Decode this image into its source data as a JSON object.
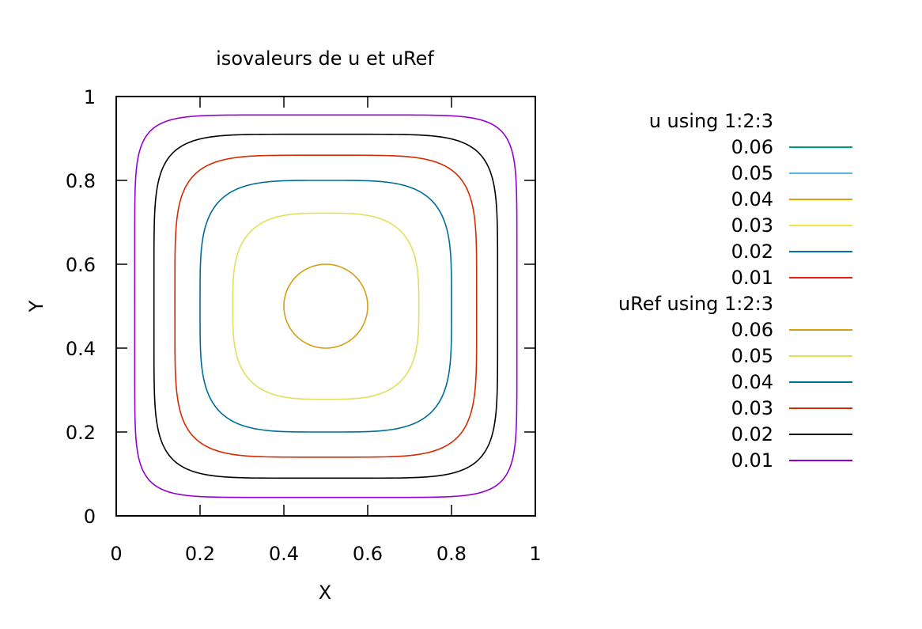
{
  "chart_data": {
    "type": "contour",
    "title": "isovaleurs de u et uRef",
    "xlabel": "X",
    "ylabel": "Y",
    "xlim": [
      0,
      1
    ],
    "ylim": [
      0,
      1
    ],
    "xticks": [
      "0",
      "0.2",
      "0.4",
      "0.6",
      "0.8",
      "1"
    ],
    "yticks": [
      "0",
      "0.2",
      "0.4",
      "0.6",
      "0.8",
      "1"
    ],
    "legend_position": "right",
    "series": [
      {
        "name": "u using 1:2:3",
        "levels": [
          {
            "label": "0.06",
            "color": "#009e73"
          },
          {
            "label": "0.05",
            "color": "#56b4e9"
          },
          {
            "label": "0.04",
            "color": "#e69f00"
          },
          {
            "label": "0.03",
            "color": "#f0e442"
          },
          {
            "label": "0.02",
            "color": "#0072b2"
          },
          {
            "label": "0.01",
            "color": "#e51e10"
          }
        ]
      },
      {
        "name": "uRef using 1:2:3",
        "levels": [
          {
            "label": "0.06",
            "color": "#d4a017",
            "half_width": 0.1,
            "exponent": 2.0
          },
          {
            "label": "0.05",
            "color": "#e0e05a",
            "half_width": 0.222,
            "exponent": 3.2
          },
          {
            "label": "0.04",
            "color": "#006c9a",
            "half_width": 0.3,
            "exponent": 4.0
          },
          {
            "label": "0.03",
            "color": "#d62a00",
            "half_width": 0.36,
            "exponent": 5.0
          },
          {
            "label": "0.02",
            "color": "#000000",
            "half_width": 0.41,
            "exponent": 6.0
          },
          {
            "label": "0.01",
            "color": "#9400d3",
            "half_width": 0.456,
            "exponent": 8.0
          }
        ]
      }
    ]
  }
}
